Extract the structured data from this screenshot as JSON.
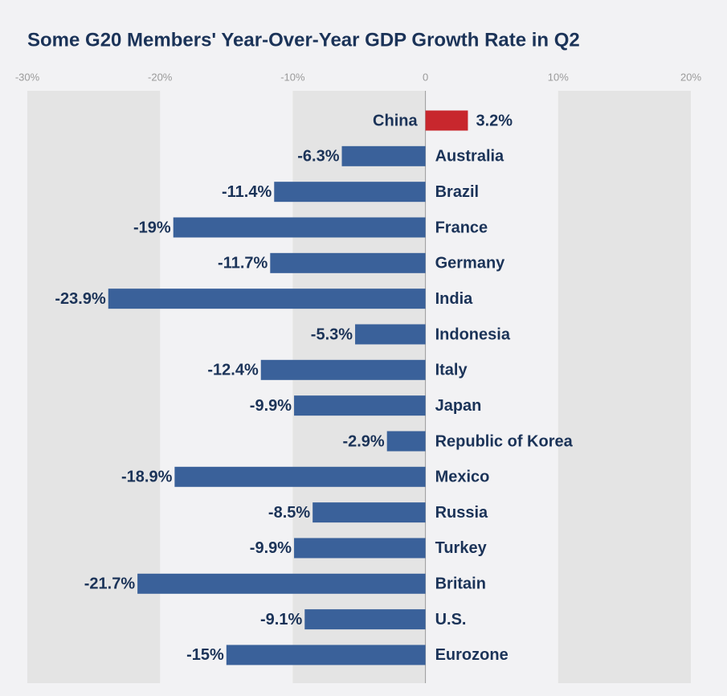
{
  "chart_data": {
    "type": "hbar",
    "title": "Some G20 Members' Year-Over-Year GDP Growth Rate in Q2",
    "categories": [
      "China",
      "Australia",
      "Brazil",
      "France",
      "Germany",
      "India",
      "Indonesia",
      "Italy",
      "Japan",
      "Republic of Korea",
      "Mexico",
      "Russia",
      "Turkey",
      "Britain",
      "U.S.",
      "Eurozone"
    ],
    "values": [
      3.2,
      -6.3,
      -11.4,
      -19,
      -11.7,
      -23.9,
      -5.3,
      -12.4,
      -9.9,
      -2.9,
      -18.9,
      -8.5,
      -9.9,
      -21.7,
      -9.1,
      -15
    ],
    "value_labels": [
      "3.2%",
      "-6.3%",
      "-11.4%",
      "-19%",
      "-11.7%",
      "-23.9%",
      "-5.3%",
      "-12.4%",
      "-9.9%",
      "-2.9%",
      "-18.9%",
      "-8.5%",
      "-9.9%",
      "-21.7%",
      "-9.1%",
      "-15%"
    ],
    "colors": [
      "#c8272d",
      "#3a619a",
      "#3a619a",
      "#3a619a",
      "#3a619a",
      "#3a619a",
      "#3a619a",
      "#3a619a",
      "#3a619a",
      "#3a619a",
      "#3a619a",
      "#3a619a",
      "#3a619a",
      "#3a619a",
      "#3a619a",
      "#3a619a"
    ],
    "xlim": [
      -30,
      20
    ],
    "xticks": [
      {
        "value": -30,
        "label": "-30%"
      },
      {
        "value": -20,
        "label": "-20%"
      },
      {
        "value": -10,
        "label": "-10%"
      },
      0,
      {
        "value": 10,
        "label": "10%"
      },
      {
        "value": 20,
        "label": "20%"
      }
    ],
    "grid": true
  }
}
